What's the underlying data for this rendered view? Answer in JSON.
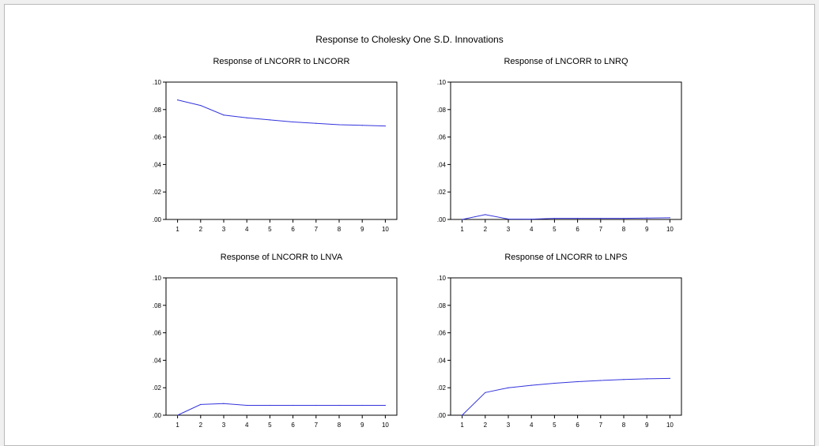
{
  "title": "Response to Cholesky One S.D. Innovations",
  "colors": {
    "line": "#3333dd",
    "axis": "#000000",
    "frame_border": "#b9b9b9"
  },
  "chart_data": [
    {
      "type": "line",
      "title": "Response of LNCORR to LNCORR",
      "x": [
        1,
        2,
        3,
        4,
        5,
        6,
        7,
        8,
        9,
        10
      ],
      "series": [
        {
          "values": [
            0.087,
            0.083,
            0.076,
            0.074,
            0.0725,
            0.071,
            0.07,
            0.069,
            0.0685,
            0.068
          ]
        }
      ],
      "ylim": [
        0,
        0.1
      ],
      "yticks": [
        ".10",
        ".08",
        ".06",
        ".04",
        ".02",
        ".00"
      ],
      "xticks": [
        "1",
        "2",
        "3",
        "4",
        "5",
        "6",
        "7",
        "8",
        "9",
        "10"
      ],
      "grid": false
    },
    {
      "type": "line",
      "title": "Response of LNCORR to LNRQ",
      "x": [
        1,
        2,
        3,
        4,
        5,
        6,
        7,
        8,
        9,
        10
      ],
      "series": [
        {
          "values": [
            0.0,
            0.0035,
            0.0003,
            0.0002,
            0.0008,
            0.0008,
            0.0008,
            0.0008,
            0.001,
            0.0012
          ]
        }
      ],
      "ylim": [
        0,
        0.1
      ],
      "yticks": [
        ".10",
        ".08",
        ".06",
        ".04",
        ".02",
        ".00"
      ],
      "xticks": [
        "1",
        "2",
        "3",
        "4",
        "5",
        "6",
        "7",
        "8",
        "9",
        "10"
      ],
      "grid": false
    },
    {
      "type": "line",
      "title": "Response of LNCORR to LNVA",
      "x": [
        1,
        2,
        3,
        4,
        5,
        6,
        7,
        8,
        9,
        10
      ],
      "series": [
        {
          "values": [
            0.0,
            0.0078,
            0.0085,
            0.0072,
            0.0072,
            0.0072,
            0.0072,
            0.0072,
            0.0072,
            0.0072
          ]
        }
      ],
      "ylim": [
        0,
        0.1
      ],
      "yticks": [
        ".10",
        ".08",
        ".06",
        ".04",
        ".02",
        ".00"
      ],
      "xticks": [
        "1",
        "2",
        "3",
        "4",
        "5",
        "6",
        "7",
        "8",
        "9",
        "10"
      ],
      "grid": false
    },
    {
      "type": "line",
      "title": "Response of LNCORR to LNPS",
      "x": [
        1,
        2,
        3,
        4,
        5,
        6,
        7,
        8,
        9,
        10
      ],
      "series": [
        {
          "values": [
            0.0,
            0.0165,
            0.02,
            0.0218,
            0.0233,
            0.0244,
            0.0253,
            0.026,
            0.0265,
            0.0268
          ]
        }
      ],
      "ylim": [
        0,
        0.1
      ],
      "yticks": [
        ".10",
        ".08",
        ".06",
        ".04",
        ".02",
        ".00"
      ],
      "xticks": [
        "1",
        "2",
        "3",
        "4",
        "5",
        "6",
        "7",
        "8",
        "9",
        "10"
      ],
      "grid": false
    }
  ]
}
